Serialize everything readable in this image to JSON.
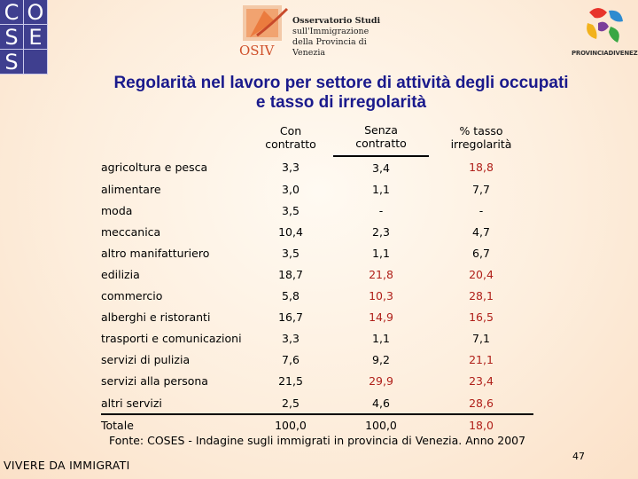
{
  "logos": {
    "coses_letters": [
      "C",
      "O",
      "S",
      "E",
      "S",
      ""
    ],
    "osiv": {
      "mark": "OSIV",
      "lines": [
        "Osservatorio Studi",
        "sull'Immigrazione",
        "della Provincia di Venezia"
      ]
    },
    "provincia": {
      "label": "PROVINCIADIVENEZIA"
    }
  },
  "title": {
    "line1": "Regolarità nel lavoro per settore di attività degli occupati",
    "line2": "e tasso di irregolarità"
  },
  "table": {
    "headers": [
      {
        "line1": "",
        "line2": ""
      },
      {
        "line1": "Con",
        "line2": "contratto"
      },
      {
        "line1": "Senza",
        "line2": "contratto"
      },
      {
        "line1": "% tasso",
        "line2": "irregolarità"
      }
    ],
    "rows": [
      [
        "agricoltura e pesca",
        "3,3",
        "3,4",
        "18,8"
      ],
      [
        "alimentare",
        "3,0",
        "1,1",
        "7,7"
      ],
      [
        "moda",
        "3,5",
        "-",
        "-"
      ],
      [
        "meccanica",
        "10,4",
        "2,3",
        "4,7"
      ],
      [
        "altro manifatturiero",
        "3,5",
        "1,1",
        "6,7"
      ],
      [
        "edilizia",
        "18,7",
        "21,8",
        "20,4"
      ],
      [
        "commercio",
        "5,8",
        "10,3",
        "28,1"
      ],
      [
        "alberghi e ristoranti",
        "16,7",
        "14,9",
        "16,5"
      ],
      [
        "trasporti e comunicazioni",
        "3,3",
        "1,1",
        "7,1"
      ],
      [
        "servizi di pulizia",
        "7,6",
        "9,2",
        "21,1"
      ],
      [
        "servizi alla persona",
        "21,5",
        "29,9",
        "23,4"
      ],
      [
        "altri servizi",
        "2,5",
        "4,6",
        "28,6"
      ]
    ],
    "total": [
      "Totale",
      "100,0",
      "100,0",
      "18,0"
    ]
  },
  "source": "Fonte: COSES - Indagine sugli immigrati in provincia di Venezia. Anno 2007",
  "footer": {
    "left": "VIVERE DA IMMIGRATI",
    "page": "47"
  }
}
